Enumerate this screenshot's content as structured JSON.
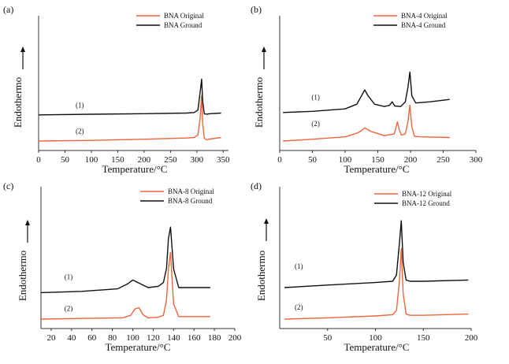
{
  "figure": {
    "colors": {
      "original": "#f0643c",
      "ground": "#111111",
      "axis": "#333333"
    }
  },
  "chart_data": [
    {
      "panel_label": "(a)",
      "type": "line",
      "xlabel": "Temperature/°C",
      "ylabel": "Endothermo",
      "y_arrow": "↑",
      "xlim": [
        0,
        360
      ],
      "xticks": [
        0,
        50,
        100,
        150,
        200,
        250,
        300,
        350
      ],
      "ylim": [
        0,
        10
      ],
      "curve_labels": [
        {
          "text": "(1)",
          "x": 78,
          "y": 2.55
        },
        {
          "text": "(2)",
          "x": 78,
          "y": 0.35
        }
      ],
      "series": [
        {
          "name": "BNA Original",
          "color": "#f0643c",
          "x": [
            0,
            100,
            200,
            280,
            295,
            302,
            306,
            309,
            311,
            314,
            318,
            322,
            330,
            346
          ],
          "y": [
            0,
            0.05,
            0.15,
            0.25,
            0.3,
            0.5,
            1.8,
            3.8,
            1.5,
            0.25,
            0.1,
            0.15,
            0.2,
            0.3
          ]
        },
        {
          "name": "BNA Ground",
          "color": "#111111",
          "x": [
            0,
            100,
            200,
            280,
            295,
            302,
            306,
            309,
            311,
            314,
            318,
            325,
            346
          ],
          "y": [
            2.2,
            2.25,
            2.3,
            2.35,
            2.4,
            2.6,
            4.0,
            5.2,
            3.4,
            2.3,
            2.25,
            2.3,
            2.35
          ]
        }
      ]
    },
    {
      "panel_label": "(b)",
      "type": "line",
      "xlabel": "Temperature/°C",
      "ylabel": "Endothermo",
      "y_arrow": "↑",
      "xlim": [
        0,
        300
      ],
      "xticks": [
        0,
        50,
        100,
        150,
        200,
        250,
        300
      ],
      "ylim": [
        0,
        10
      ],
      "curve_labels": [
        {
          "text": "(1)",
          "x": 55,
          "y": 3.2
        },
        {
          "text": "(2)",
          "x": 55,
          "y": 1.0
        }
      ],
      "series": [
        {
          "name": "BNA-4 Original",
          "color": "#f0643c",
          "x": [
            5,
            50,
            100,
            120,
            130,
            140,
            160,
            175,
            180,
            183,
            186,
            192,
            196,
            199,
            202,
            206,
            215,
            260
          ],
          "y": [
            0,
            0.15,
            0.35,
            0.7,
            1.1,
            0.8,
            0.45,
            0.6,
            1.6,
            0.9,
            0.5,
            0.6,
            1.6,
            3.0,
            1.2,
            0.4,
            0.35,
            0.3
          ]
        },
        {
          "name": "BNA-4 Ground",
          "color": "#111111",
          "x": [
            5,
            50,
            100,
            118,
            125,
            130,
            135,
            145,
            160,
            168,
            172,
            176,
            185,
            192,
            196,
            199,
            202,
            208,
            230,
            260
          ],
          "y": [
            2.4,
            2.5,
            2.7,
            3.1,
            3.8,
            4.3,
            3.8,
            3.1,
            2.9,
            3.0,
            3.3,
            2.95,
            2.9,
            3.3,
            4.5,
            5.8,
            3.8,
            3.2,
            3.3,
            3.5
          ]
        }
      ]
    },
    {
      "panel_label": "(c)",
      "type": "line",
      "xlabel": "Temperature/°C",
      "ylabel": "Endothermo",
      "y_arrow": "↑",
      "xlim": [
        10,
        200
      ],
      "xticks": [
        20,
        40,
        60,
        80,
        100,
        120,
        140,
        160,
        180,
        200
      ],
      "ylim": [
        0,
        10
      ],
      "curve_labels": [
        {
          "text": "(1)",
          "x": 37,
          "y": 2.9
        },
        {
          "text": "(2)",
          "x": 37,
          "y": 0.4
        }
      ],
      "series": [
        {
          "name": "BNA-8 Original",
          "color": "#f0643c",
          "x": [
            10,
            50,
            90,
            98,
            102,
            106,
            110,
            115,
            125,
            130,
            133,
            135,
            137,
            140,
            145,
            176
          ],
          "y": [
            0,
            0.05,
            0.1,
            0.3,
            0.8,
            0.9,
            0.35,
            0.1,
            0.15,
            0.3,
            1.5,
            4.0,
            5.3,
            1.2,
            0.2,
            0.2
          ]
        },
        {
          "name": "BNA-8 Ground",
          "color": "#111111",
          "x": [
            10,
            50,
            85,
            95,
            100,
            105,
            115,
            125,
            130,
            133,
            135,
            137,
            140,
            145,
            176
          ],
          "y": [
            2.1,
            2.2,
            2.4,
            2.8,
            3.1,
            2.9,
            2.5,
            2.6,
            2.9,
            4.0,
            6.4,
            7.3,
            4.0,
            2.5,
            2.5
          ]
        }
      ]
    },
    {
      "panel_label": "(d)",
      "type": "line",
      "xlabel": "Temperature/°C",
      "ylabel": "Endothermo",
      "y_arrow": "↑",
      "xlim": [
        0,
        200
      ],
      "xticks": [
        50,
        100,
        150,
        200
      ],
      "ylim": [
        0,
        10
      ],
      "curve_labels": [
        {
          "text": "(1)",
          "x": 20,
          "y": 3.75
        },
        {
          "text": "(2)",
          "x": 20,
          "y": 0.5
        }
      ],
      "series": [
        {
          "name": "BNA-12 Original",
          "color": "#f0643c",
          "x": [
            5,
            50,
            100,
            118,
            122,
            125,
            127,
            129,
            132,
            136,
            150,
            197
          ],
          "y": [
            0,
            0.1,
            0.25,
            0.35,
            0.7,
            3.0,
            5.6,
            2.0,
            0.4,
            0.3,
            0.3,
            0.4
          ]
        },
        {
          "name": "BNA-12 Ground",
          "color": "#111111",
          "x": [
            5,
            50,
            100,
            118,
            122,
            125,
            127,
            129,
            132,
            136,
            150,
            197
          ],
          "y": [
            2.5,
            2.7,
            2.9,
            3.0,
            3.5,
            6.0,
            7.8,
            4.5,
            3.1,
            3.0,
            3.0,
            3.1
          ]
        }
      ]
    }
  ]
}
